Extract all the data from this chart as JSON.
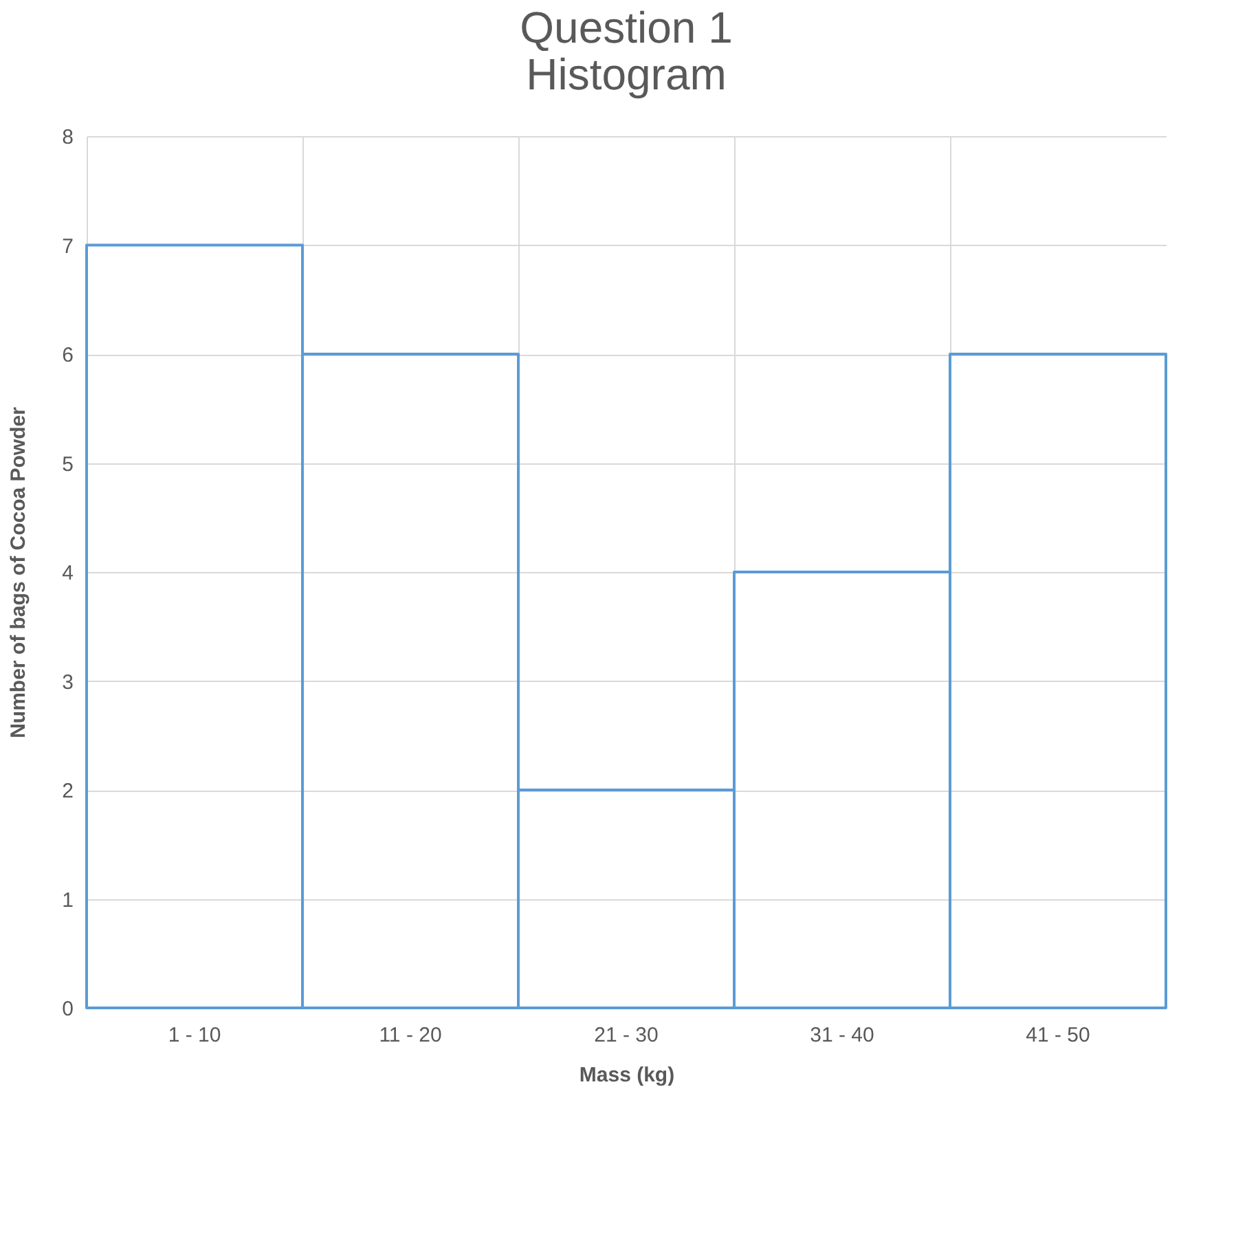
{
  "chart_data": {
    "type": "bar",
    "title": "Question 1\nHistogram",
    "xlabel": "Mass (kg)",
    "ylabel": "Number of bags of Cocoa Powder",
    "categories": [
      "1 - 10",
      "11 - 20",
      "21 - 30",
      "31 - 40",
      "41 - 50"
    ],
    "values": [
      7,
      6,
      2,
      4,
      6
    ],
    "color": "#5b9bd5",
    "ylim": [
      0,
      8
    ],
    "yticks": [
      0,
      1,
      2,
      3,
      4,
      5,
      6,
      7,
      8
    ],
    "grid": true
  }
}
